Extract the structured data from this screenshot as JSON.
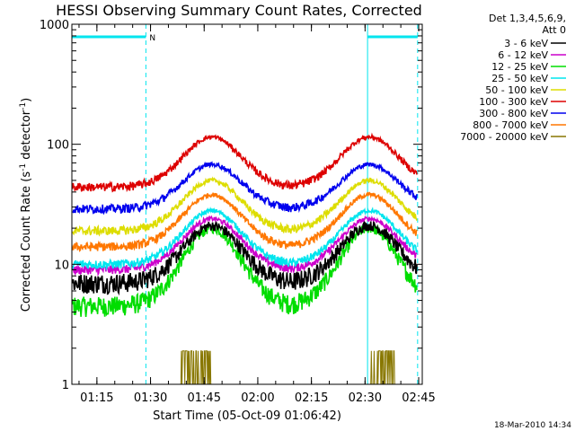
{
  "chart_data": {
    "type": "line",
    "title": "HESSI Observing Summary Count Rates, Corrected",
    "xlabel": "Start Time (05-Oct-09 01:06:42)",
    "ylabel_main": "Corrected Count Rate (s",
    "ylabel_sup1": "-1",
    "ylabel_mid": " detector",
    "ylabel_sup2": "-1",
    "ylabel_end": ")",
    "yscale": "log",
    "ylim": [
      1,
      1000
    ],
    "xlim_minutes": [
      1.3,
      99.3
    ],
    "x_ticks": [
      {
        "minutes": 8.3,
        "label": "01:15"
      },
      {
        "minutes": 23.3,
        "label": "01:30"
      },
      {
        "minutes": 38.3,
        "label": "01:45"
      },
      {
        "minutes": 53.3,
        "label": "02:00"
      },
      {
        "minutes": 68.3,
        "label": "02:15"
      },
      {
        "minutes": 83.3,
        "label": "02:30"
      },
      {
        "minutes": 98.3,
        "label": "02:45"
      }
    ],
    "y_ticks": [
      {
        "value": 1,
        "label": "1"
      },
      {
        "value": 10,
        "label": "10"
      },
      {
        "value": 100,
        "label": "100"
      },
      {
        "value": 1000,
        "label": "1000"
      }
    ],
    "legend_header": [
      "Det 1,3,4,5,6,9,",
      "Att 0"
    ],
    "series": [
      {
        "name": "3 - 6 keV",
        "color": "#000000",
        "base": 7,
        "peak": 21
      },
      {
        "name": "6 - 12 keV",
        "color": "#cc00cc",
        "base": 9,
        "peak": 24
      },
      {
        "name": "12 - 25 keV",
        "color": "#00dd00",
        "base": 4.5,
        "peak": 20
      },
      {
        "name": "25 - 50 keV",
        "color": "#00e5ee",
        "base": 10,
        "peak": 28
      },
      {
        "name": "50 - 100 keV",
        "color": "#dddd00",
        "base": 19,
        "peak": 50
      },
      {
        "name": "100 - 300 keV",
        "color": "#dd0000",
        "base": 44,
        "peak": 115
      },
      {
        "name": "300 - 800 keV",
        "color": "#0000ee",
        "base": 29,
        "peak": 68
      },
      {
        "name": "800 - 7000 keV",
        "color": "#ff7700",
        "base": 14,
        "peak": 38
      },
      {
        "name": "7000 - 20000 keV",
        "color": "#887700",
        "base": 1,
        "peak": 1.9
      }
    ],
    "peak_centers_minutes": [
      40.5,
      84.5
    ],
    "night_intervals_minutes": [
      [
        1.3,
        22.0
      ],
      [
        84.0,
        98.0
      ]
    ],
    "saa_markers": [
      {
        "minutes": 21.5,
        "label": "N"
      }
    ],
    "bursts_7000_20000_minutes": [
      [
        31.8,
        40.2
      ],
      [
        84.5,
        91.5
      ]
    ]
  },
  "footer": {
    "timestamp": "18-Mar-2010 14:34"
  },
  "colors": {
    "axis": "#000000",
    "night_bar": "#00e5ee"
  }
}
